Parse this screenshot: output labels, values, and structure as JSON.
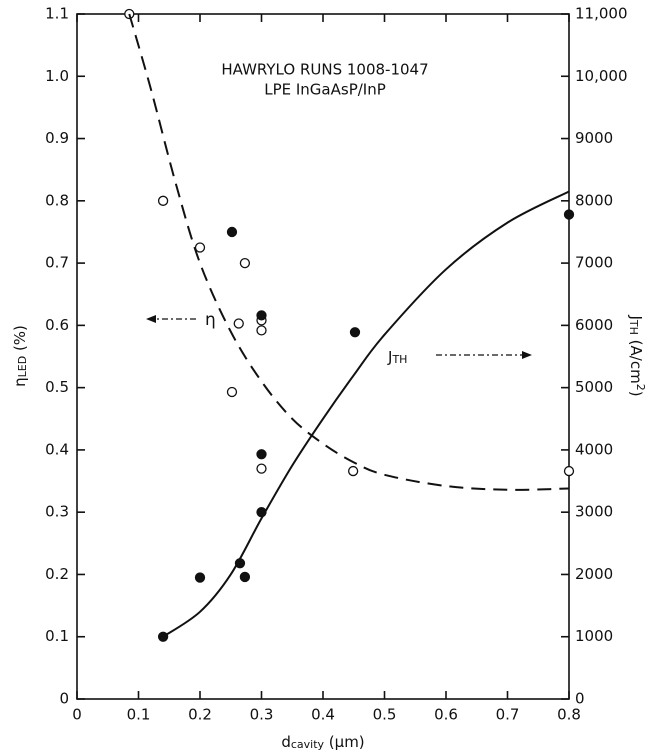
{
  "chart_data": {
    "type": "scatter",
    "annotations": [
      "HAWRYLO RUNS 1008-1047",
      "LPE InGaAsP/InP"
    ],
    "eta_label": "η",
    "jth_label": [
      {
        "text": "J"
      },
      {
        "text": "TH",
        "shift": "sub"
      }
    ],
    "xlabel": [
      {
        "text": "d"
      },
      {
        "text": "cavity",
        "shift": "sub"
      },
      {
        "text": " (μm)"
      }
    ],
    "ylabel": [
      {
        "text": "η"
      },
      {
        "text": "LED",
        "shift": "sub"
      },
      {
        "text": " (%)"
      }
    ],
    "y2label": [
      {
        "text": "J"
      },
      {
        "text": "TH",
        "shift": "sub"
      },
      {
        "text": " (A/cm"
      },
      {
        "text": "2",
        "shift": "super"
      },
      {
        "text": ")"
      }
    ],
    "xlim": [
      0,
      0.8
    ],
    "xticks": [
      0,
      0.1,
      0.2,
      0.3,
      0.4,
      0.5,
      0.6,
      0.7,
      0.8
    ],
    "ylim": [
      0,
      1.1
    ],
    "yticks": [
      0,
      0.1,
      0.2,
      0.3,
      0.4,
      0.5,
      0.6,
      0.7,
      0.8,
      0.9,
      {
        "value": 1,
        "label": "1.0"
      },
      1.1
    ],
    "y2lim": [
      0,
      11000
    ],
    "y2ticks": [
      0,
      1000,
      2000,
      3000,
      4000,
      5000,
      6000,
      7000,
      8000,
      9000,
      {
        "value": 10000,
        "label": "10,000"
      },
      {
        "value": 11000,
        "label": "11,000"
      }
    ],
    "series": [
      {
        "kind": "points",
        "marker": "open",
        "color": "#111111",
        "x": [
          0.085,
          0.14,
          0.2,
          0.252,
          0.263,
          0.273,
          0.3,
          0.3,
          0.3,
          0.449,
          0.8
        ],
        "values": [
          1.1,
          0.8,
          0.725,
          0.493,
          0.603,
          0.7,
          0.608,
          0.592,
          0.37,
          0.366,
          0.366
        ]
      },
      {
        "kind": "points",
        "marker": "filled",
        "color": "#111111",
        "axis": "y2",
        "x": [
          0.14,
          0.2,
          0.252,
          0.265,
          0.273,
          0.3,
          0.3,
          0.3,
          0.452,
          0.8
        ],
        "values": [
          1000,
          1950,
          7500,
          2180,
          1960,
          6160,
          3930,
          3000,
          5890,
          7780
        ]
      },
      {
        "kind": "line",
        "style": "dashed",
        "color": "#111111",
        "x": [
          0.085,
          0.12,
          0.16,
          0.2,
          0.25,
          0.3,
          0.35,
          0.4,
          0.45,
          0.5,
          0.6,
          0.7,
          0.8
        ],
        "values": [
          1.1,
          0.98,
          0.83,
          0.7,
          0.59,
          0.51,
          0.45,
          0.41,
          0.38,
          0.36,
          0.342,
          0.336,
          0.338
        ]
      },
      {
        "kind": "line",
        "style": "solid",
        "color": "#111111",
        "axis": "y2",
        "x": [
          0.14,
          0.2,
          0.25,
          0.3,
          0.35,
          0.4,
          0.45,
          0.5,
          0.6,
          0.7,
          0.8
        ],
        "values": [
          1000,
          1400,
          2000,
          2900,
          3750,
          4500,
          5200,
          5850,
          6900,
          7650,
          8150
        ]
      }
    ]
  }
}
